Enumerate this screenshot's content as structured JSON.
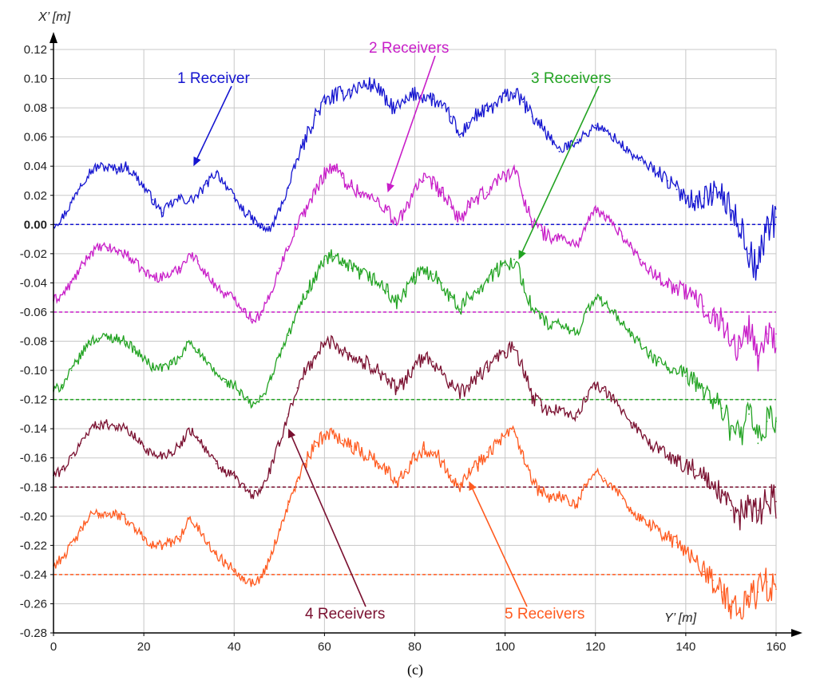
{
  "chart_data": {
    "type": "line",
    "title": "",
    "panel_label": "(c)",
    "xlabel": "Y’ [m]",
    "ylabel": "X’ [m]",
    "xlim": [
      0,
      165
    ],
    "ylim": [
      -0.28,
      0.12
    ],
    "x_ticks": [
      0,
      20,
      40,
      60,
      80,
      100,
      120,
      140,
      160
    ],
    "y_ticks": [
      0.12,
      0.1,
      0.08,
      0.06,
      0.04,
      0.02,
      0.0,
      -0.02,
      -0.04,
      -0.06,
      -0.08,
      -0.1,
      -0.12,
      -0.14,
      -0.16,
      -0.18,
      -0.2,
      -0.22,
      -0.24,
      -0.26,
      -0.28
    ],
    "y_tick_labels": [
      "0.12",
      "0.10",
      "0.08",
      "0.06",
      "0.04",
      "0.02",
      "0.00",
      "-0.02",
      "-0.04",
      "-0.06",
      "-0.08",
      "-0.10",
      "-0.12",
      "-0.14",
      "-0.16",
      "-0.18",
      "-0.20",
      "-0.22",
      "-0.24",
      "-0.26",
      "-0.28"
    ],
    "grid": true,
    "series": [
      {
        "name": "1 Receiver",
        "color": "#1515d0",
        "baseline": 0.0,
        "x": [
          0,
          2,
          4,
          6,
          8,
          10,
          12,
          14,
          16,
          18,
          20,
          22,
          24,
          26,
          28,
          30,
          32,
          34,
          36,
          38,
          40,
          42,
          44,
          46,
          48,
          50,
          52,
          54,
          56,
          58,
          60,
          62,
          64,
          66,
          68,
          70,
          72,
          74,
          76,
          78,
          80,
          82,
          84,
          86,
          88,
          90,
          92,
          94,
          96,
          98,
          100,
          102,
          104,
          106,
          108,
          110,
          112,
          114,
          116,
          118,
          120,
          122,
          124,
          126,
          128,
          130,
          132,
          134,
          136,
          138,
          140,
          142,
          144,
          146,
          148,
          150,
          152,
          154,
          156,
          158,
          160
        ],
        "values": [
          0.0,
          0.005,
          0.015,
          0.028,
          0.036,
          0.04,
          0.039,
          0.038,
          0.04,
          0.034,
          0.026,
          0.017,
          0.008,
          0.014,
          0.018,
          0.016,
          0.02,
          0.028,
          0.036,
          0.028,
          0.018,
          0.01,
          0.004,
          -0.002,
          -0.004,
          0.01,
          0.025,
          0.045,
          0.06,
          0.075,
          0.084,
          0.088,
          0.09,
          0.092,
          0.095,
          0.096,
          0.094,
          0.082,
          0.08,
          0.084,
          0.09,
          0.088,
          0.086,
          0.08,
          0.074,
          0.06,
          0.07,
          0.076,
          0.078,
          0.082,
          0.088,
          0.09,
          0.084,
          0.074,
          0.068,
          0.06,
          0.05,
          0.054,
          0.058,
          0.062,
          0.068,
          0.064,
          0.06,
          0.054,
          0.048,
          0.044,
          0.04,
          0.036,
          0.03,
          0.024,
          0.02,
          0.016,
          0.018,
          0.022,
          0.02,
          0.01,
          0.0,
          -0.02,
          -0.03,
          0.0,
          0.005
        ],
        "annotation": {
          "x": 31,
          "y": 0.04
        }
      },
      {
        "name": "2 Receivers",
        "color": "#c81ec8",
        "baseline": -0.06,
        "x": [
          0,
          2,
          4,
          6,
          8,
          10,
          12,
          14,
          16,
          18,
          20,
          22,
          24,
          26,
          28,
          30,
          32,
          34,
          36,
          38,
          40,
          42,
          44,
          46,
          48,
          50,
          52,
          54,
          56,
          58,
          60,
          62,
          64,
          66,
          68,
          70,
          72,
          74,
          76,
          78,
          80,
          82,
          84,
          86,
          88,
          90,
          92,
          94,
          96,
          98,
          100,
          102,
          104,
          106,
          108,
          110,
          112,
          114,
          116,
          118,
          120,
          122,
          124,
          126,
          128,
          130,
          132,
          134,
          136,
          138,
          140,
          142,
          144,
          146,
          148,
          150,
          152,
          154,
          156,
          158,
          160
        ],
        "values": [
          -0.052,
          -0.048,
          -0.04,
          -0.03,
          -0.02,
          -0.016,
          -0.016,
          -0.018,
          -0.02,
          -0.026,
          -0.032,
          -0.036,
          -0.036,
          -0.034,
          -0.03,
          -0.02,
          -0.025,
          -0.035,
          -0.042,
          -0.048,
          -0.05,
          -0.058,
          -0.065,
          -0.062,
          -0.048,
          -0.03,
          -0.015,
          0.0,
          0.012,
          0.022,
          0.036,
          0.04,
          0.032,
          0.026,
          0.022,
          0.018,
          0.016,
          0.01,
          0.0,
          0.01,
          0.026,
          0.03,
          0.028,
          0.022,
          0.012,
          0.004,
          0.012,
          0.018,
          0.022,
          0.03,
          0.034,
          0.038,
          0.02,
          0.002,
          -0.004,
          -0.01,
          -0.008,
          -0.012,
          -0.014,
          0.0,
          0.01,
          0.006,
          0.0,
          -0.008,
          -0.016,
          -0.024,
          -0.032,
          -0.036,
          -0.04,
          -0.044,
          -0.046,
          -0.05,
          -0.056,
          -0.062,
          -0.066,
          -0.08,
          -0.085,
          -0.07,
          -0.09,
          -0.075,
          -0.075
        ],
        "annotation": {
          "x": 74,
          "y": 0.022
        }
      },
      {
        "name": "3 Receivers",
        "color": "#22a322",
        "baseline": -0.12,
        "x": [
          0,
          2,
          4,
          6,
          8,
          10,
          12,
          14,
          16,
          18,
          20,
          22,
          24,
          26,
          28,
          30,
          32,
          34,
          36,
          38,
          40,
          42,
          44,
          46,
          48,
          50,
          52,
          54,
          56,
          58,
          60,
          62,
          64,
          66,
          68,
          70,
          72,
          74,
          76,
          78,
          80,
          82,
          84,
          86,
          88,
          90,
          92,
          94,
          96,
          98,
          100,
          102,
          104,
          106,
          108,
          110,
          112,
          114,
          116,
          118,
          120,
          122,
          124,
          126,
          128,
          130,
          132,
          134,
          136,
          138,
          140,
          142,
          144,
          146,
          148,
          150,
          152,
          154,
          156,
          158,
          160
        ],
        "values": [
          -0.114,
          -0.11,
          -0.1,
          -0.09,
          -0.08,
          -0.078,
          -0.077,
          -0.078,
          -0.08,
          -0.086,
          -0.092,
          -0.098,
          -0.098,
          -0.096,
          -0.092,
          -0.08,
          -0.086,
          -0.096,
          -0.102,
          -0.108,
          -0.11,
          -0.118,
          -0.124,
          -0.12,
          -0.106,
          -0.09,
          -0.076,
          -0.06,
          -0.046,
          -0.036,
          -0.024,
          -0.022,
          -0.028,
          -0.03,
          -0.034,
          -0.036,
          -0.04,
          -0.046,
          -0.054,
          -0.046,
          -0.036,
          -0.032,
          -0.034,
          -0.04,
          -0.05,
          -0.058,
          -0.05,
          -0.044,
          -0.038,
          -0.032,
          -0.028,
          -0.024,
          -0.04,
          -0.058,
          -0.064,
          -0.07,
          -0.068,
          -0.072,
          -0.074,
          -0.06,
          -0.05,
          -0.054,
          -0.06,
          -0.068,
          -0.076,
          -0.082,
          -0.09,
          -0.094,
          -0.098,
          -0.102,
          -0.104,
          -0.108,
          -0.112,
          -0.12,
          -0.126,
          -0.14,
          -0.145,
          -0.13,
          -0.15,
          -0.135,
          -0.135
        ],
        "annotation": {
          "x": 103,
          "y": -0.024
        }
      },
      {
        "name": "4 Receivers",
        "color": "#7a1030",
        "baseline": -0.18,
        "x": [
          0,
          2,
          4,
          6,
          8,
          10,
          12,
          14,
          16,
          18,
          20,
          22,
          24,
          26,
          28,
          30,
          32,
          34,
          36,
          38,
          40,
          42,
          44,
          46,
          48,
          50,
          52,
          54,
          56,
          58,
          60,
          62,
          64,
          66,
          68,
          70,
          72,
          74,
          76,
          78,
          80,
          82,
          84,
          86,
          88,
          90,
          92,
          94,
          96,
          98,
          100,
          102,
          104,
          106,
          108,
          110,
          112,
          114,
          116,
          118,
          120,
          122,
          124,
          126,
          128,
          130,
          132,
          134,
          136,
          138,
          140,
          142,
          144,
          146,
          148,
          150,
          152,
          154,
          156,
          158,
          160
        ],
        "values": [
          -0.172,
          -0.168,
          -0.16,
          -0.15,
          -0.14,
          -0.137,
          -0.137,
          -0.138,
          -0.14,
          -0.146,
          -0.152,
          -0.158,
          -0.158,
          -0.156,
          -0.152,
          -0.14,
          -0.146,
          -0.156,
          -0.164,
          -0.17,
          -0.172,
          -0.18,
          -0.186,
          -0.182,
          -0.168,
          -0.15,
          -0.13,
          -0.112,
          -0.1,
          -0.09,
          -0.082,
          -0.08,
          -0.086,
          -0.09,
          -0.094,
          -0.096,
          -0.1,
          -0.106,
          -0.114,
          -0.106,
          -0.096,
          -0.092,
          -0.094,
          -0.1,
          -0.11,
          -0.116,
          -0.11,
          -0.104,
          -0.098,
          -0.092,
          -0.088,
          -0.084,
          -0.1,
          -0.118,
          -0.124,
          -0.128,
          -0.126,
          -0.13,
          -0.132,
          -0.118,
          -0.11,
          -0.114,
          -0.12,
          -0.128,
          -0.136,
          -0.142,
          -0.15,
          -0.154,
          -0.158,
          -0.162,
          -0.164,
          -0.168,
          -0.174,
          -0.18,
          -0.186,
          -0.196,
          -0.2,
          -0.19,
          -0.196,
          -0.19,
          -0.19
        ],
        "annotation": {
          "x": 52,
          "y": -0.14
        }
      },
      {
        "name": "5 Receivers",
        "color": "#ff5a1f",
        "baseline": -0.24,
        "x": [
          0,
          2,
          4,
          6,
          8,
          10,
          12,
          14,
          16,
          18,
          20,
          22,
          24,
          26,
          28,
          30,
          32,
          34,
          36,
          38,
          40,
          42,
          44,
          46,
          48,
          50,
          52,
          54,
          56,
          58,
          60,
          62,
          64,
          66,
          68,
          70,
          72,
          74,
          76,
          78,
          80,
          82,
          84,
          86,
          88,
          90,
          92,
          94,
          96,
          98,
          100,
          102,
          104,
          106,
          108,
          110,
          112,
          114,
          116,
          118,
          120,
          122,
          124,
          126,
          128,
          130,
          132,
          134,
          136,
          138,
          140,
          142,
          144,
          146,
          148,
          150,
          152,
          154,
          156,
          158,
          160
        ],
        "values": [
          -0.234,
          -0.228,
          -0.22,
          -0.21,
          -0.2,
          -0.198,
          -0.198,
          -0.199,
          -0.202,
          -0.208,
          -0.214,
          -0.22,
          -0.22,
          -0.218,
          -0.214,
          -0.202,
          -0.208,
          -0.218,
          -0.226,
          -0.232,
          -0.236,
          -0.242,
          -0.246,
          -0.242,
          -0.228,
          -0.21,
          -0.192,
          -0.176,
          -0.162,
          -0.152,
          -0.144,
          -0.142,
          -0.148,
          -0.152,
          -0.156,
          -0.158,
          -0.164,
          -0.17,
          -0.176,
          -0.168,
          -0.158,
          -0.154,
          -0.156,
          -0.162,
          -0.172,
          -0.178,
          -0.17,
          -0.164,
          -0.156,
          -0.15,
          -0.146,
          -0.142,
          -0.16,
          -0.178,
          -0.184,
          -0.188,
          -0.186,
          -0.19,
          -0.192,
          -0.178,
          -0.17,
          -0.174,
          -0.18,
          -0.188,
          -0.196,
          -0.202,
          -0.206,
          -0.21,
          -0.214,
          -0.218,
          -0.224,
          -0.23,
          -0.238,
          -0.244,
          -0.252,
          -0.262,
          -0.266,
          -0.255,
          -0.252,
          -0.245,
          -0.25
        ],
        "annotation": {
          "x": 92,
          "y": -0.176
        }
      }
    ]
  }
}
